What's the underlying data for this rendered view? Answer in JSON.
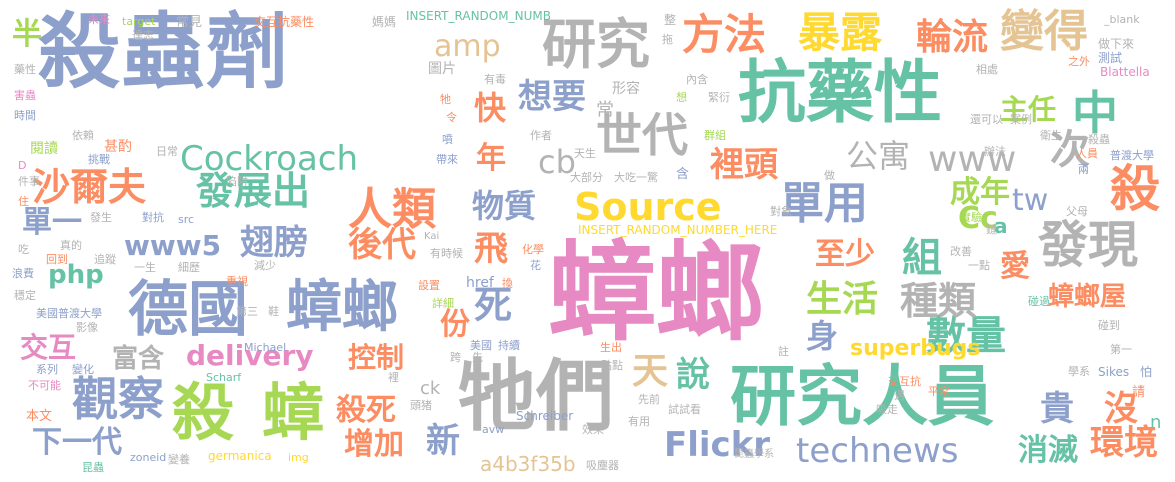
{
  "words": [
    {
      "text": "殺蟲劑",
      "color": "#8da0cb"
    },
    {
      "text": "蟑螂",
      "color": "#e78ac3"
    },
    {
      "text": "抗藥性",
      "color": "#66c2a5"
    },
    {
      "text": "牠們",
      "color": "#b3b3b3"
    },
    {
      "text": "研究人員",
      "color": "#66c2a5"
    },
    {
      "text": "德國",
      "color": "#8da0cb"
    },
    {
      "text": "蟑螂",
      "color": "#8da0cb"
    },
    {
      "text": "殺",
      "color": "#a6d854"
    },
    {
      "text": "蟑",
      "color": "#a6d854"
    },
    {
      "text": "研究",
      "color": "#b3b3b3"
    },
    {
      "text": "世代",
      "color": "#b3b3b3"
    },
    {
      "text": "人類",
      "color": "#fc8d62"
    },
    {
      "text": "發現",
      "color": "#b3b3b3"
    },
    {
      "text": "暴露",
      "color": "#ffd92f"
    },
    {
      "text": "變得",
      "color": "#e5c494"
    },
    {
      "text": "方法",
      "color": "#fc8d62"
    },
    {
      "text": "輪流",
      "color": "#fc8d62"
    },
    {
      "text": "中",
      "color": "#66c2a5"
    },
    {
      "text": "殺",
      "color": "#fc8d62"
    },
    {
      "text": "沙爾夫",
      "color": "#fc8d62"
    },
    {
      "text": "發展出",
      "color": "#66c2a5"
    },
    {
      "text": "觀察",
      "color": "#8da0cb"
    },
    {
      "text": "Source",
      "color": "#ffd92f"
    },
    {
      "text": "單用",
      "color": "#8da0cb"
    },
    {
      "text": "Cockroach",
      "color": "#66c2a5"
    },
    {
      "text": "數量",
      "color": "#66c2a5"
    },
    {
      "text": "www",
      "color": "#b3b3b3"
    },
    {
      "text": "次",
      "color": "#b3b3b3"
    },
    {
      "text": "Flickr",
      "color": "#8da0cb"
    },
    {
      "text": "technews",
      "color": "#8da0cb"
    },
    {
      "text": "環境",
      "color": "#fc8d62"
    },
    {
      "text": "蟑螂屋",
      "color": "#fc8d62"
    },
    {
      "text": "種類",
      "color": "#b3b3b3"
    },
    {
      "text": "組",
      "color": "#66c2a5"
    },
    {
      "text": "生活",
      "color": "#a6d854"
    },
    {
      "text": "裡頭",
      "color": "#fc8d62"
    },
    {
      "text": "成年",
      "color": "#a6d854"
    },
    {
      "text": "公寓",
      "color": "#b3b3b3"
    },
    {
      "text": "主任",
      "color": "#a6d854"
    },
    {
      "text": "物質",
      "color": "#8da0cb"
    },
    {
      "text": "翅膀",
      "color": "#8da0cb"
    },
    {
      "text": "後代",
      "color": "#fc8d62"
    },
    {
      "text": "至少",
      "color": "#fc8d62"
    },
    {
      "text": "愛",
      "color": "#fc8d62"
    },
    {
      "text": "cb",
      "color": "#b3b3b3"
    },
    {
      "text": "tw",
      "color": "#8da0cb"
    },
    {
      "text": "Cc",
      "color": "#a6d854"
    },
    {
      "text": "a",
      "color": "#66c2a5"
    },
    {
      "text": "飛",
      "color": "#fc8d62"
    },
    {
      "text": "死",
      "color": "#8da0cb"
    },
    {
      "text": "份",
      "color": "#fc8d62"
    },
    {
      "text": "身",
      "color": "#8da0cb"
    },
    {
      "text": "快",
      "color": "#fc8d62"
    },
    {
      "text": "年",
      "color": "#fc8d62"
    },
    {
      "text": "想要",
      "color": "#8da0cb"
    },
    {
      "text": "amp",
      "color": "#e5c494"
    },
    {
      "text": "www5",
      "color": "#8da0cb"
    },
    {
      "text": "php",
      "color": "#66c2a5"
    },
    {
      "text": "delivery",
      "color": "#e78ac3"
    },
    {
      "text": "富含",
      "color": "#b3b3b3"
    },
    {
      "text": "控制",
      "color": "#fc8d62"
    },
    {
      "text": "殺死",
      "color": "#fc8d62"
    },
    {
      "text": "增加",
      "color": "#fc8d62"
    },
    {
      "text": "新",
      "color": "#8da0cb"
    },
    {
      "text": "說",
      "color": "#66c2a5"
    },
    {
      "text": "天",
      "color": "#e5c494"
    },
    {
      "text": "superbugs",
      "color": "#ffd92f"
    },
    {
      "text": "貴",
      "color": "#8da0cb"
    },
    {
      "text": "沒",
      "color": "#fc8d62"
    },
    {
      "text": "消滅",
      "color": "#66c2a5"
    },
    {
      "text": "交互",
      "color": "#e78ac3"
    },
    {
      "text": "下一代",
      "color": "#8da0cb"
    },
    {
      "text": "單一",
      "color": "#8da0cb"
    },
    {
      "text": "半",
      "color": "#a6d854"
    },
    {
      "text": "a4b3f35b",
      "color": "#e5c494"
    },
    {
      "text": "n",
      "color": "#66c2a5"
    },
    {
      "text": "INSERT_RANDOM_NUMB",
      "color": "#66c2a5"
    },
    {
      "text": "INSERT_RANDOM_NUMBER_HERE",
      "color": "#ffd92f"
    },
    {
      "text": "圖片",
      "color": "#b3b3b3"
    },
    {
      "text": "形容",
      "color": "#b3b3b3"
    },
    {
      "text": "美國普渡大學",
      "color": "#8da0cb"
    },
    {
      "text": "閱讀",
      "color": "#a6d854"
    },
    {
      "text": "甚酌",
      "color": "#fc8d62"
    },
    {
      "text": "依賴",
      "color": "#b3b3b3"
    },
    {
      "text": "常",
      "color": "#b3b3b3"
    },
    {
      "text": "href",
      "color": "#8da0cb"
    },
    {
      "text": "ck",
      "color": "#b3b3b3"
    },
    {
      "text": "Schreiber",
      "color": "#8da0cb"
    },
    {
      "text": "Michael",
      "color": "#8da0cb"
    },
    {
      "text": "germanica",
      "color": "#ffd92f"
    },
    {
      "text": "img",
      "color": "#ffd92f"
    },
    {
      "text": "zoneid",
      "color": "#8da0cb"
    },
    {
      "text": "Scharf",
      "color": "#66c2a5"
    },
    {
      "text": "target",
      "color": "#a6d854"
    },
    {
      "text": "_blank",
      "color": "#b3b3b3"
    },
    {
      "text": "Blattella",
      "color": "#e78ac3"
    },
    {
      "text": "Sikes",
      "color": "#8da0cb"
    },
    {
      "text": "avw",
      "color": "#8da0cb"
    },
    {
      "text": "src",
      "color": "#8da0cb"
    },
    {
      "text": "Kai",
      "color": "#b3b3b3"
    },
    {
      "text": "吸塵器",
      "color": "#b3b3b3"
    },
    {
      "text": "昆蟲學系",
      "color": "#b3b3b3"
    },
    {
      "text": "未來",
      "color": "#e78ac3"
    },
    {
      "text": "常見",
      "color": "#b3b3b3"
    },
    {
      "text": "交互抗藥性",
      "color": "#fc8d62"
    },
    {
      "text": "媽媽",
      "color": "#b3b3b3"
    },
    {
      "text": "整",
      "color": "#b3b3b3"
    },
    {
      "text": "拖",
      "color": "#b3b3b3"
    },
    {
      "text": "有毒",
      "color": "#b3b3b3"
    },
    {
      "text": "內含",
      "color": "#b3b3b3"
    },
    {
      "text": "緊衍",
      "color": "#b3b3b3"
    },
    {
      "text": "想",
      "color": "#a6d854"
    },
    {
      "text": "相處",
      "color": "#b3b3b3"
    },
    {
      "text": "之外",
      "color": "#fc8d62"
    },
    {
      "text": "做下來",
      "color": "#b3b3b3"
    },
    {
      "text": "測試",
      "color": "#8da0cb"
    },
    {
      "text": "藥性",
      "color": "#b3b3b3"
    },
    {
      "text": "害蟲",
      "color": "#e78ac3"
    },
    {
      "text": "時間",
      "color": "#8da0cb"
    },
    {
      "text": "達志",
      "color": "#b3b3b3"
    },
    {
      "text": "牠",
      "color": "#fc8d62"
    },
    {
      "text": "令",
      "color": "#fc8d62"
    },
    {
      "text": "作者",
      "color": "#b3b3b3"
    },
    {
      "text": "群組",
      "color": "#a6d854"
    },
    {
      "text": "還可以",
      "color": "#b3b3b3"
    },
    {
      "text": "案例",
      "color": "#b3b3b3"
    },
    {
      "text": "衛生",
      "color": "#b3b3b3"
    },
    {
      "text": "殺蟲",
      "color": "#b3b3b3"
    },
    {
      "text": "人員",
      "color": "#fc8d62"
    },
    {
      "text": "普渡大學",
      "color": "#8da0cb"
    },
    {
      "text": "辦法",
      "color": "#b3b3b3"
    },
    {
      "text": "做",
      "color": "#b3b3b3"
    },
    {
      "text": "兩",
      "color": "#8da0cb"
    },
    {
      "text": "日常",
      "color": "#b3b3b3"
    },
    {
      "text": "挑戰",
      "color": "#8da0cb"
    },
    {
      "text": "帶來",
      "color": "#8da0cb"
    },
    {
      "text": "天生",
      "color": "#b3b3b3"
    },
    {
      "text": "噴",
      "color": "#8da0cb"
    },
    {
      "text": "大部分",
      "color": "#b3b3b3"
    },
    {
      "text": "大吃一驚",
      "color": "#b3b3b3"
    },
    {
      "text": "含",
      "color": "#8da0cb"
    },
    {
      "text": "件事",
      "color": "#b3b3b3"
    },
    {
      "text": "陷阱",
      "color": "#b3b3b3"
    },
    {
      "text": "住",
      "color": "#fc8d62"
    },
    {
      "text": "發生",
      "color": "#b3b3b3"
    },
    {
      "text": "對抗",
      "color": "#8da0cb"
    },
    {
      "text": "對象",
      "color": "#b3b3b3"
    },
    {
      "text": "父母",
      "color": "#b3b3b3"
    },
    {
      "text": "實驗",
      "color": "#a6d854"
    },
    {
      "text": "鏈",
      "color": "#b3b3b3"
    },
    {
      "text": "真的",
      "color": "#b3b3b3"
    },
    {
      "text": "回到",
      "color": "#fc8d62"
    },
    {
      "text": "追蹤",
      "color": "#b3b3b3"
    },
    {
      "text": "吃",
      "color": "#b3b3b3"
    },
    {
      "text": "浪費",
      "color": "#8da0cb"
    },
    {
      "text": "有時候",
      "color": "#b3b3b3"
    },
    {
      "text": "化學",
      "color": "#fc8d62"
    },
    {
      "text": "花",
      "color": "#8da0cb"
    },
    {
      "text": "改善",
      "color": "#b3b3b3"
    },
    {
      "text": "一點",
      "color": "#b3b3b3"
    },
    {
      "text": "一生",
      "color": "#b3b3b3"
    },
    {
      "text": "細歷",
      "color": "#b3b3b3"
    },
    {
      "text": "減少",
      "color": "#b3b3b3"
    },
    {
      "text": "重視",
      "color": "#fc8d62"
    },
    {
      "text": "穩定",
      "color": "#b3b3b3"
    },
    {
      "text": "設置",
      "color": "#fc8d62"
    },
    {
      "text": "換",
      "color": "#fc8d62"
    },
    {
      "text": "碰過",
      "color": "#66c2a5"
    },
    {
      "text": "詳細",
      "color": "#a6d854"
    },
    {
      "text": "第三",
      "color": "#b3b3b3"
    },
    {
      "text": "鞋",
      "color": "#b3b3b3"
    },
    {
      "text": "碰到",
      "color": "#b3b3b3"
    },
    {
      "text": "影像",
      "color": "#b3b3b3"
    },
    {
      "text": "系列",
      "color": "#8da0cb"
    },
    {
      "text": "變化",
      "color": "#8da0cb"
    },
    {
      "text": "不可能",
      "color": "#e78ac3"
    },
    {
      "text": "裡",
      "color": "#b3b3b3"
    },
    {
      "text": "美國",
      "color": "#8da0cb"
    },
    {
      "text": "持續",
      "color": "#8da0cb"
    },
    {
      "text": "跨",
      "color": "#b3b3b3"
    },
    {
      "text": "先",
      "color": "#b3b3b3"
    },
    {
      "text": "生出",
      "color": "#fc8d62"
    },
    {
      "text": "一點點",
      "color": "#b3b3b3"
    },
    {
      "text": "註",
      "color": "#b3b3b3"
    },
    {
      "text": "第一",
      "color": "#b3b3b3"
    },
    {
      "text": "學系",
      "color": "#b3b3b3"
    },
    {
      "text": "怕",
      "color": "#8da0cb"
    },
    {
      "text": "交互抗",
      "color": "#fc8d62"
    },
    {
      "text": "平常",
      "color": "#fc8d62"
    },
    {
      "text": "遇",
      "color": "#b3b3b3"
    },
    {
      "text": "吸走",
      "color": "#b3b3b3"
    },
    {
      "text": "請",
      "color": "#fc8d62"
    },
    {
      "text": "先前",
      "color": "#b3b3b3"
    },
    {
      "text": "試試看",
      "color": "#b3b3b3"
    },
    {
      "text": "頭猪",
      "color": "#b3b3b3"
    },
    {
      "text": "效果",
      "color": "#b3b3b3"
    },
    {
      "text": "有用",
      "color": "#b3b3b3"
    },
    {
      "text": "本文",
      "color": "#fc8d62"
    },
    {
      "text": "昆蟲",
      "color": "#66c2a5"
    },
    {
      "text": "變養",
      "color": "#b3b3b3"
    },
    {
      "text": "D",
      "color": "#e78ac3"
    }
  ]
}
